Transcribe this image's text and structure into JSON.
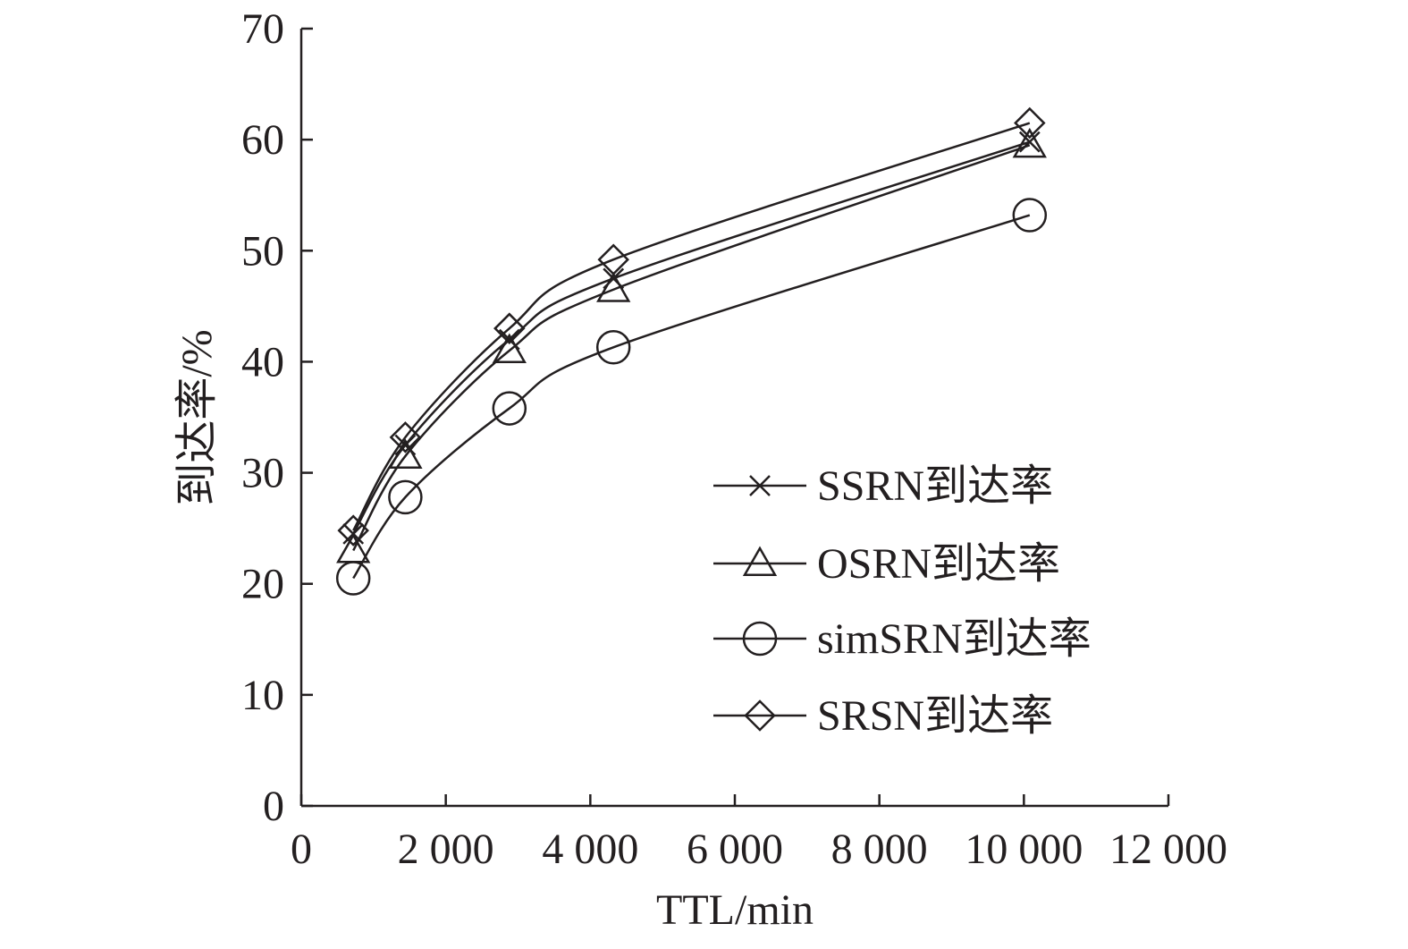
{
  "chart_data": {
    "type": "line",
    "title": "",
    "xlabel": "TTL/min",
    "ylabel": "到达率/%",
    "xlim": [
      0,
      12000
    ],
    "ylim": [
      0,
      70
    ],
    "xticks": [
      0,
      2000,
      4000,
      6000,
      8000,
      10000,
      12000
    ],
    "xtick_labels": [
      "0",
      "2 000",
      "4 000",
      "6 000",
      "8 000",
      "10 000",
      "12 000"
    ],
    "yticks": [
      0,
      10,
      20,
      30,
      40,
      50,
      60,
      70
    ],
    "ytick_labels": [
      "0",
      "10",
      "20",
      "30",
      "40",
      "50",
      "60",
      "70"
    ],
    "grid": false,
    "legend_position": "center-right",
    "x": [
      720,
      1440,
      2880,
      4320,
      10080
    ],
    "series": [
      {
        "name": "SSRN到达率",
        "marker": "x",
        "values": [
          24.5,
          32.5,
          42.0,
          47.5,
          59.8
        ]
      },
      {
        "name": "OSRN到达率",
        "marker": "triangle",
        "values": [
          23.0,
          31.5,
          41.0,
          46.5,
          59.5
        ]
      },
      {
        "name": "simSRN到达率",
        "marker": "circle",
        "values": [
          20.5,
          27.8,
          35.8,
          41.3,
          53.2
        ]
      },
      {
        "name": "SRSN到达率",
        "marker": "diamond",
        "values": [
          24.8,
          33.2,
          43.0,
          49.2,
          61.5
        ]
      }
    ]
  }
}
